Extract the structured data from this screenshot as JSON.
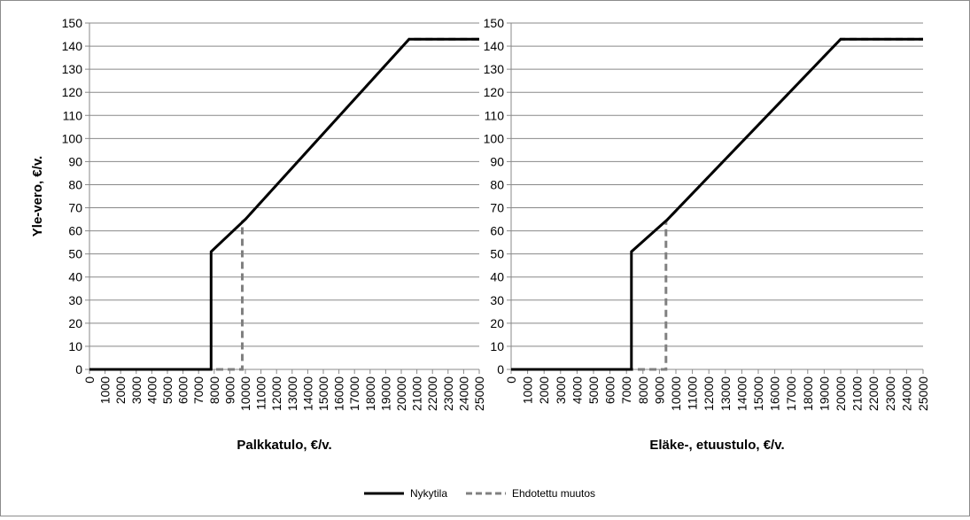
{
  "chart_data": [
    {
      "type": "line",
      "xlabel": "Palkkatulo, €/v.",
      "ylabel": "Yle-vero, €/v.",
      "ylim": [
        0,
        150
      ],
      "yticks": [
        0,
        10,
        20,
        30,
        40,
        50,
        60,
        70,
        80,
        90,
        100,
        110,
        120,
        130,
        140,
        150
      ],
      "xlim": [
        0,
        25000
      ],
      "xticks": [
        0,
        1000,
        2000,
        3000,
        4000,
        5000,
        6000,
        7000,
        8000,
        9000,
        10000,
        11000,
        12000,
        13000,
        14000,
        15000,
        16000,
        17000,
        18000,
        19000,
        20000,
        21000,
        22000,
        23000,
        24000,
        25000
      ],
      "grid": "horizontal",
      "series": [
        {
          "name": "Nykytila",
          "points": [
            [
              0,
              0
            ],
            [
              7800,
              0
            ],
            [
              7800,
              51
            ],
            [
              10000,
              65
            ],
            [
              20500,
              143
            ],
            [
              25000,
              143
            ]
          ]
        },
        {
          "name": "Ehdotettu muutos",
          "points": [
            [
              0,
              0
            ],
            [
              9800,
              0
            ],
            [
              9800,
              64
            ],
            [
              10000,
              65
            ],
            [
              20500,
              143
            ],
            [
              25000,
              143
            ]
          ]
        }
      ]
    },
    {
      "type": "line",
      "xlabel": "Eläke-, etuustulo, €/v.",
      "ylabel": "",
      "ylim": [
        0,
        150
      ],
      "yticks": [
        0,
        10,
        20,
        30,
        40,
        50,
        60,
        70,
        80,
        90,
        100,
        110,
        120,
        130,
        140,
        150
      ],
      "xlim": [
        0,
        25000
      ],
      "xticks": [
        0,
        1000,
        2000,
        3000,
        4000,
        5000,
        6000,
        7000,
        8000,
        9000,
        10000,
        11000,
        12000,
        13000,
        14000,
        15000,
        16000,
        17000,
        18000,
        19000,
        20000,
        21000,
        22000,
        23000,
        24000,
        25000
      ],
      "grid": "horizontal",
      "series": [
        {
          "name": "Nykytila",
          "points": [
            [
              0,
              0
            ],
            [
              7300,
              0
            ],
            [
              7300,
              51
            ],
            [
              9500,
              65
            ],
            [
              20000,
              143
            ],
            [
              25000,
              143
            ]
          ]
        },
        {
          "name": "Ehdotettu muutos",
          "points": [
            [
              0,
              0
            ],
            [
              9400,
              0
            ],
            [
              9400,
              64
            ],
            [
              9500,
              65
            ],
            [
              20000,
              143
            ],
            [
              25000,
              143
            ]
          ]
        }
      ]
    }
  ],
  "legend": {
    "position": "bottom",
    "items": [
      {
        "label": "Nykytila",
        "color": "#000000",
        "style": "solid"
      },
      {
        "label": "Ehdotettu muutos",
        "color": "#808080",
        "style": "dashed"
      }
    ]
  },
  "colors": {
    "grid": "#888888",
    "axis": "#888888",
    "text": "#000000",
    "nykytila": "#000000",
    "ehdotettu": "#808080"
  }
}
